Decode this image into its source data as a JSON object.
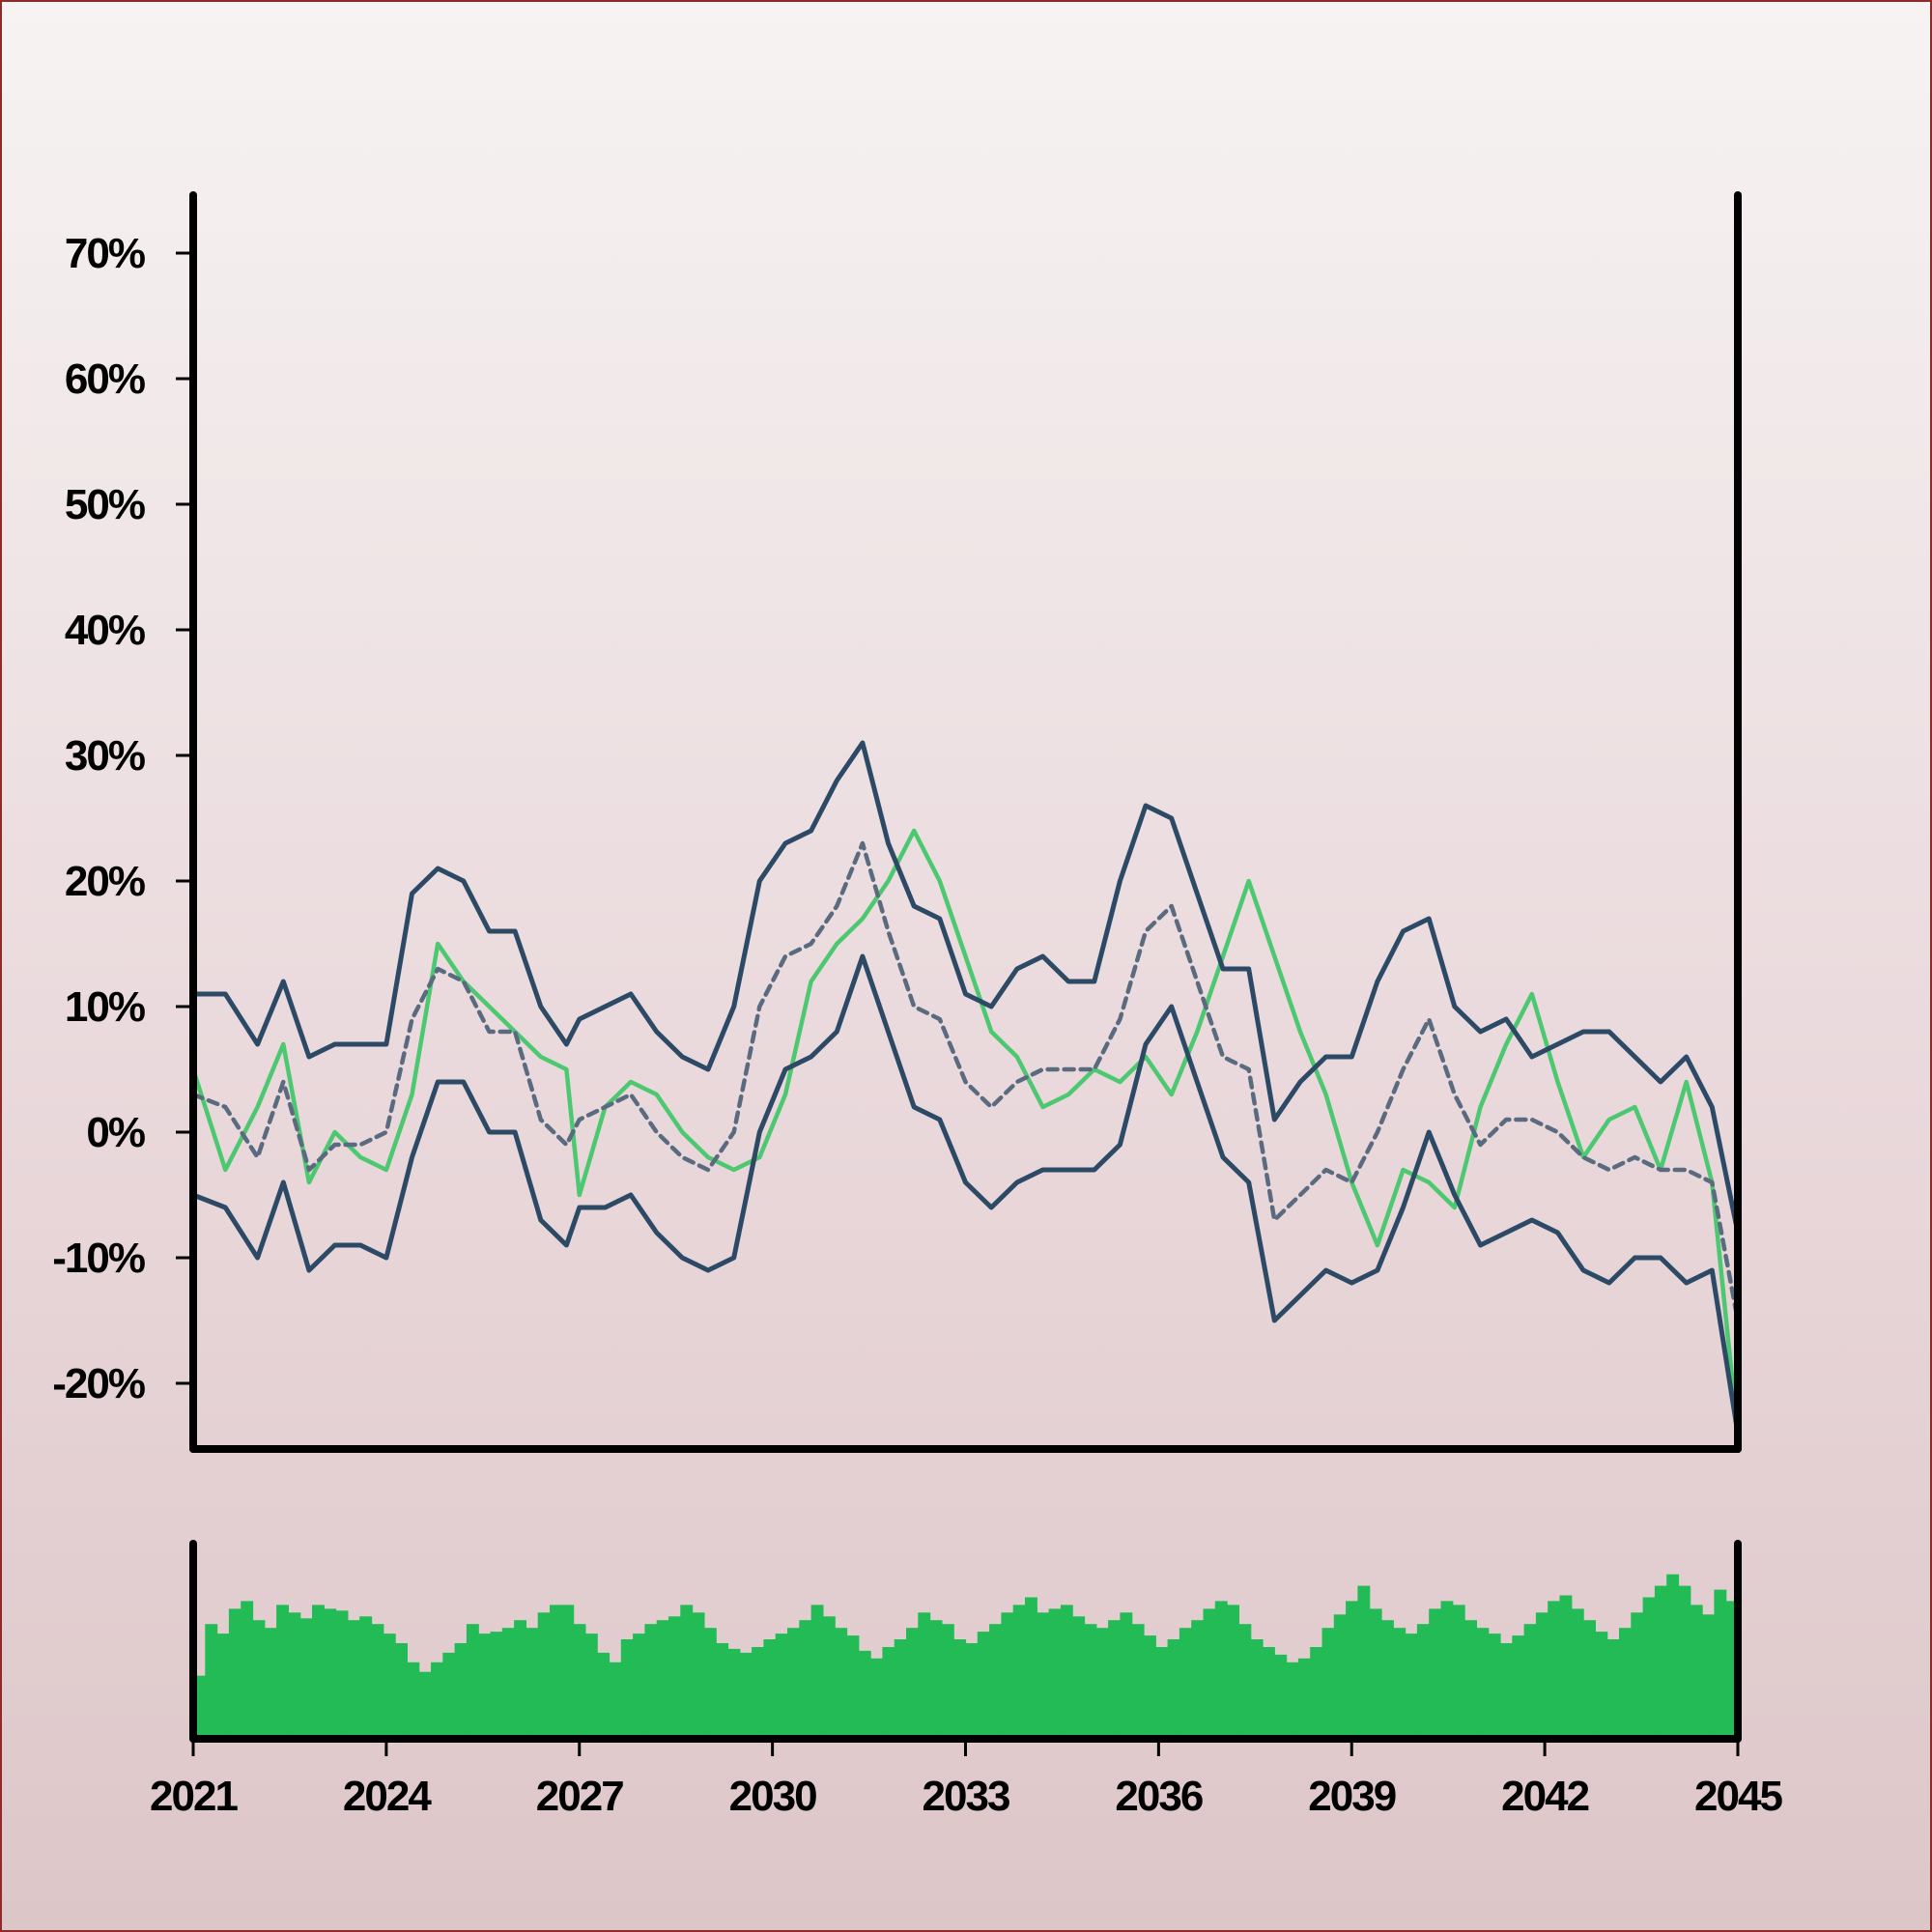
{
  "chart_data": {
    "type": "line",
    "title": "",
    "xlabel": "",
    "ylabel": "",
    "xlim": [
      2021,
      2045
    ],
    "ylim": [
      -25,
      75
    ],
    "x_ticks": [
      "2021",
      "2024",
      "2027",
      "2030",
      "2033",
      "2036",
      "2039",
      "2042",
      "2045"
    ],
    "y_ticks": [
      "-20%",
      "-10%",
      "0%",
      "10%",
      "20%",
      "30%",
      "40%",
      "50%",
      "60%",
      "70%"
    ],
    "y_tick_values": [
      -20,
      -10,
      0,
      10,
      20,
      30,
      40,
      50,
      60,
      70
    ],
    "grid": false,
    "legend": "none",
    "colors": {
      "price": "#4cc870",
      "bands": "#2c4a66",
      "middle": "#5a6b80",
      "volume": "#22bb55",
      "axis": "#000000"
    },
    "series": [
      {
        "role": "price",
        "x": [
          2021.0,
          2021.5,
          2022.0,
          2022.4,
          2022.8,
          2023.2,
          2023.6,
          2024.0,
          2024.4,
          2024.8,
          2025.2,
          2025.6,
          2026.0,
          2026.4,
          2026.8,
          2027.0,
          2027.4,
          2027.8,
          2028.2,
          2028.6,
          2029.0,
          2029.4,
          2029.8,
          2030.2,
          2030.6,
          2031.0,
          2031.4,
          2031.8,
          2032.2,
          2032.6,
          2033.0,
          2033.4,
          2033.8,
          2034.2,
          2034.6,
          2035.0,
          2035.4,
          2035.8,
          2036.2,
          2036.6,
          2037.0,
          2037.4,
          2037.8,
          2038.2,
          2038.6,
          2039.0,
          2039.4,
          2039.8,
          2040.2,
          2040.6,
          2041.0,
          2041.4,
          2041.8,
          2042.2,
          2042.6,
          2043.0,
          2043.4,
          2043.8,
          2044.2,
          2044.6,
          2045.0
        ],
        "values": [
          5,
          -3,
          2,
          7,
          -4,
          0,
          -2,
          -3,
          3,
          15,
          12,
          10,
          8,
          6,
          5,
          -5,
          2,
          4,
          3,
          0,
          -2,
          -3,
          -2,
          3,
          12,
          15,
          17,
          20,
          24,
          20,
          14,
          8,
          6,
          2,
          3,
          5,
          4,
          6,
          3,
          8,
          14,
          20,
          14,
          8,
          3,
          -4,
          -9,
          -3,
          -4,
          -6,
          2,
          7,
          11,
          4,
          -2,
          1,
          2,
          -3,
          4,
          -4,
          -24
        ]
      },
      {
        "role": "upper-band",
        "x": [
          2021.0,
          2021.5,
          2022.0,
          2022.4,
          2022.8,
          2023.2,
          2023.6,
          2024.0,
          2024.4,
          2024.8,
          2025.2,
          2025.6,
          2026.0,
          2026.4,
          2026.8,
          2027.0,
          2027.4,
          2027.8,
          2028.2,
          2028.6,
          2029.0,
          2029.4,
          2029.8,
          2030.2,
          2030.6,
          2031.0,
          2031.4,
          2031.8,
          2032.2,
          2032.6,
          2033.0,
          2033.4,
          2033.8,
          2034.2,
          2034.6,
          2035.0,
          2035.4,
          2035.8,
          2036.2,
          2036.6,
          2037.0,
          2037.4,
          2037.8,
          2038.2,
          2038.6,
          2039.0,
          2039.4,
          2039.8,
          2040.2,
          2040.6,
          2041.0,
          2041.4,
          2041.8,
          2042.2,
          2042.6,
          2043.0,
          2043.4,
          2043.8,
          2044.2,
          2044.6,
          2045.0
        ],
        "values": [
          11,
          11,
          7,
          12,
          6,
          7,
          7,
          7,
          19,
          21,
          20,
          16,
          16,
          10,
          7,
          9,
          10,
          11,
          8,
          6,
          5,
          10,
          20,
          23,
          24,
          28,
          31,
          23,
          18,
          17,
          11,
          10,
          13,
          14,
          12,
          12,
          20,
          26,
          25,
          19,
          13,
          13,
          1,
          4,
          6,
          6,
          12,
          16,
          17,
          10,
          8,
          9,
          6,
          7,
          8,
          8,
          6,
          4,
          6,
          2,
          -8
        ]
      },
      {
        "role": "middle-band",
        "x": [
          2021.0,
          2021.5,
          2022.0,
          2022.4,
          2022.8,
          2023.2,
          2023.6,
          2024.0,
          2024.4,
          2024.8,
          2025.2,
          2025.6,
          2026.0,
          2026.4,
          2026.8,
          2027.0,
          2027.4,
          2027.8,
          2028.2,
          2028.6,
          2029.0,
          2029.4,
          2029.8,
          2030.2,
          2030.6,
          2031.0,
          2031.4,
          2031.8,
          2032.2,
          2032.6,
          2033.0,
          2033.4,
          2033.8,
          2034.2,
          2034.6,
          2035.0,
          2035.4,
          2035.8,
          2036.2,
          2036.6,
          2037.0,
          2037.4,
          2037.8,
          2038.2,
          2038.6,
          2039.0,
          2039.4,
          2039.8,
          2040.2,
          2040.6,
          2041.0,
          2041.4,
          2041.8,
          2042.2,
          2042.6,
          2043.0,
          2043.4,
          2043.8,
          2044.2,
          2044.6,
          2045.0
        ],
        "values": [
          3,
          2,
          -2,
          4,
          -3,
          -1,
          -1,
          0,
          9,
          13,
          12,
          8,
          8,
          1,
          -1,
          1,
          2,
          3,
          0,
          -2,
          -3,
          0,
          10,
          14,
          15,
          18,
          23,
          16,
          10,
          9,
          4,
          2,
          4,
          5,
          5,
          5,
          9,
          16,
          18,
          12,
          6,
          5,
          -7,
          -5,
          -3,
          -4,
          0,
          5,
          9,
          3,
          -1,
          1,
          1,
          0,
          -2,
          -3,
          -2,
          -3,
          -3,
          -4,
          -15
        ]
      },
      {
        "role": "lower-band",
        "x": [
          2021.0,
          2021.5,
          2022.0,
          2022.4,
          2022.8,
          2023.2,
          2023.6,
          2024.0,
          2024.4,
          2024.8,
          2025.2,
          2025.6,
          2026.0,
          2026.4,
          2026.8,
          2027.0,
          2027.4,
          2027.8,
          2028.2,
          2028.6,
          2029.0,
          2029.4,
          2029.8,
          2030.2,
          2030.6,
          2031.0,
          2031.4,
          2031.8,
          2032.2,
          2032.6,
          2033.0,
          2033.4,
          2033.8,
          2034.2,
          2034.6,
          2035.0,
          2035.4,
          2035.8,
          2036.2,
          2036.6,
          2037.0,
          2037.4,
          2037.8,
          2038.2,
          2038.6,
          2039.0,
          2039.4,
          2039.8,
          2040.2,
          2040.6,
          2041.0,
          2041.4,
          2041.8,
          2042.2,
          2042.6,
          2043.0,
          2043.4,
          2043.8,
          2044.2,
          2044.6,
          2045.0
        ],
        "values": [
          -5,
          -6,
          -10,
          -4,
          -11,
          -9,
          -9,
          -10,
          -2,
          4,
          4,
          0,
          0,
          -7,
          -9,
          -6,
          -6,
          -5,
          -8,
          -10,
          -11,
          -10,
          0,
          5,
          6,
          8,
          14,
          8,
          2,
          1,
          -4,
          -6,
          -4,
          -3,
          -3,
          -3,
          -1,
          7,
          10,
          4,
          -2,
          -4,
          -15,
          -13,
          -11,
          -12,
          -11,
          -6,
          0,
          -5,
          -9,
          -8,
          -7,
          -8,
          -11,
          -12,
          -10,
          -10,
          -12,
          -11,
          -24
        ]
      }
    ],
    "volume": {
      "label": "",
      "x_range": [
        2021,
        2045
      ],
      "values": [
        33,
        60,
        55,
        68,
        72,
        62,
        58,
        70,
        66,
        63,
        70,
        68,
        67,
        62,
        64,
        60,
        55,
        50,
        40,
        35,
        40,
        45,
        50,
        60,
        55,
        56,
        58,
        62,
        58,
        66,
        70,
        70,
        60,
        55,
        45,
        40,
        52,
        55,
        60,
        62,
        64,
        70,
        66,
        58,
        50,
        47,
        45,
        48,
        52,
        55,
        58,
        62,
        70,
        64,
        58,
        54,
        46,
        42,
        48,
        52,
        58,
        66,
        62,
        60,
        52,
        50,
        56,
        60,
        66,
        70,
        74,
        66,
        68,
        70,
        64,
        60,
        58,
        62,
        66,
        60,
        54,
        48,
        52,
        58,
        62,
        68,
        72,
        70,
        60,
        52,
        48,
        44,
        40,
        42,
        48,
        58,
        65,
        72,
        80,
        68,
        62,
        58,
        55,
        60,
        68,
        72,
        70,
        62,
        58,
        55,
        50,
        54,
        60,
        66,
        72,
        75,
        68,
        62,
        56,
        52,
        58,
        66,
        74,
        80,
        86,
        80,
        70,
        65,
        78,
        72
      ]
    }
  }
}
